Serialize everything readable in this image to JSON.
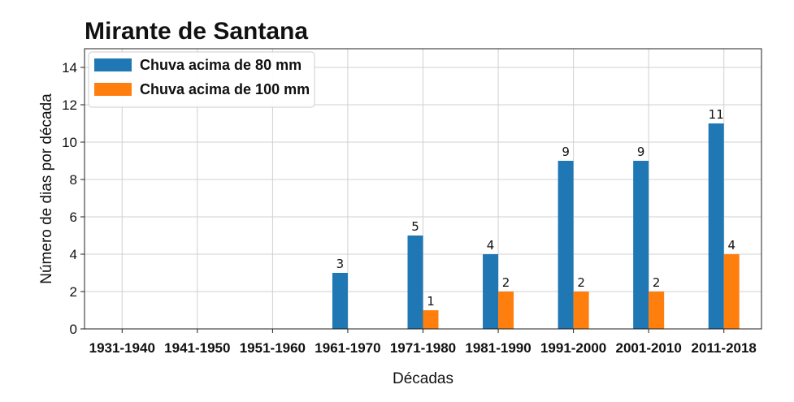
{
  "chart_data": {
    "type": "bar",
    "title": "Mirante de Santana",
    "xlabel": "Décadas",
    "ylabel": "Número de dias por década",
    "categories": [
      "1931-1940",
      "1941-1950",
      "1951-1960",
      "1961-1970",
      "1971-1980",
      "1981-1990",
      "1991-2000",
      "2001-2010",
      "2011-2018"
    ],
    "series": [
      {
        "name": "Chuva acima de 80 mm",
        "color": "#1f77b4",
        "values": [
          0,
          0,
          0,
          3,
          5,
          4,
          9,
          9,
          11
        ]
      },
      {
        "name": "Chuva acima de 100 mm",
        "color": "#ff7f0e",
        "values": [
          0,
          0,
          0,
          0,
          1,
          2,
          2,
          2,
          4
        ]
      }
    ],
    "ylim": [
      0,
      15
    ],
    "yticks": [
      0,
      2,
      4,
      6,
      8,
      10,
      12,
      14
    ],
    "grid": true,
    "legend_position": "top-left"
  }
}
